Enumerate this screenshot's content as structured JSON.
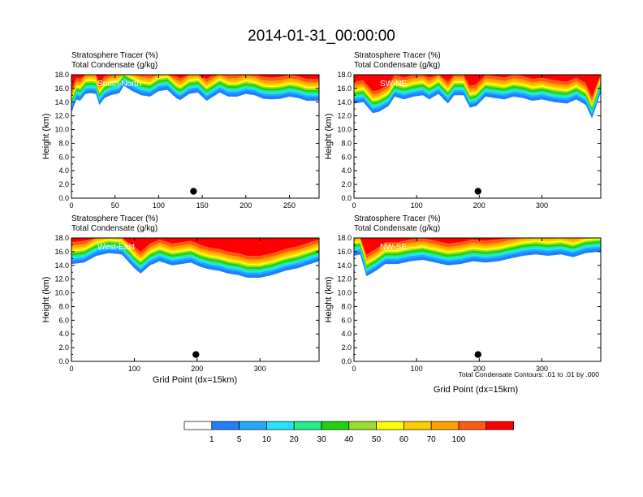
{
  "figure_title": "2014-01-31_00:00:00",
  "panel_title_line1": "Stratosphere Tracer   (%)",
  "panel_title_line2": "Total Condensate   (g/kg)",
  "ylabel": "Height (km)",
  "xlabel": "Grid Point (dx=15km)",
  "contour_note": "Total Condensate Contours: .01 to .01 by .000",
  "colors": [
    "#ffffff",
    "#1f7fff",
    "#22a8ff",
    "#23e3ff",
    "#22ee8a",
    "#20d20c",
    "#9bdf2e",
    "#ffff00",
    "#ffcc00",
    "#ffa200",
    "#ff5a12",
    "#ff0000"
  ],
  "chart_data": [
    {
      "type": "heatmap",
      "label": "South-North",
      "xlim": [
        0,
        284
      ],
      "xticks": [
        "0",
        "50",
        "100",
        "150",
        "200",
        "250"
      ],
      "xtick_values": [
        0,
        50,
        100,
        150,
        200,
        250
      ],
      "ylim": [
        0,
        18
      ],
      "yticks": [
        "0.0",
        "2.0",
        "4.0",
        "6.0",
        "8.0",
        "10.0",
        "12.0",
        "14.0",
        "16.0",
        "18.0"
      ],
      "marker": {
        "x": 140,
        "y": 1.0
      },
      "tracer_bottom_profile": [
        [
          0,
          12.6
        ],
        [
          6,
          14.4
        ],
        [
          10,
          14.2
        ],
        [
          16,
          15.2
        ],
        [
          22,
          15.3
        ],
        [
          28,
          15.2
        ],
        [
          32,
          13.6
        ],
        [
          38,
          14.6
        ],
        [
          45,
          15.0
        ],
        [
          55,
          15.3
        ],
        [
          60,
          16.4
        ],
        [
          70,
          15.6
        ],
        [
          80,
          15.0
        ],
        [
          90,
          14.8
        ],
        [
          100,
          15.6
        ],
        [
          110,
          15.8
        ],
        [
          120,
          14.6
        ],
        [
          125,
          14.3
        ],
        [
          135,
          15.2
        ],
        [
          145,
          15.4
        ],
        [
          155,
          14.2
        ],
        [
          160,
          14.6
        ],
        [
          170,
          15.4
        ],
        [
          180,
          14.8
        ],
        [
          190,
          14.8
        ],
        [
          200,
          15.2
        ],
        [
          210,
          15.0
        ],
        [
          220,
          14.5
        ],
        [
          230,
          14.4
        ],
        [
          240,
          14.5
        ],
        [
          250,
          14.8
        ],
        [
          260,
          14.6
        ],
        [
          270,
          14.2
        ],
        [
          284,
          14.2
        ]
      ]
    },
    {
      "type": "heatmap",
      "label": "SW-NE",
      "xlim": [
        0,
        394
      ],
      "xticks": [
        "0",
        "100",
        "200",
        "300"
      ],
      "xtick_values": [
        0,
        100,
        200,
        300
      ],
      "ylim": [
        0,
        18
      ],
      "yticks": [
        "0.0",
        "2.0",
        "4.0",
        "6.0",
        "8.0",
        "10.0",
        "12.0",
        "14.0",
        "16.0",
        "18.0"
      ],
      "marker": {
        "x": 198,
        "y": 1.0
      },
      "tracer_bottom_profile": [
        [
          0,
          13.8
        ],
        [
          15,
          14.0
        ],
        [
          30,
          12.4
        ],
        [
          40,
          12.6
        ],
        [
          55,
          13.4
        ],
        [
          65,
          14.8
        ],
        [
          80,
          14.4
        ],
        [
          95,
          14.8
        ],
        [
          110,
          15.0
        ],
        [
          120,
          14.4
        ],
        [
          135,
          15.2
        ],
        [
          150,
          13.8
        ],
        [
          160,
          15.0
        ],
        [
          175,
          15.0
        ],
        [
          185,
          13.2
        ],
        [
          195,
          13.4
        ],
        [
          210,
          14.8
        ],
        [
          225,
          14.6
        ],
        [
          240,
          14.4
        ],
        [
          255,
          14.8
        ],
        [
          270,
          14.6
        ],
        [
          285,
          14.2
        ],
        [
          300,
          14.4
        ],
        [
          320,
          14.0
        ],
        [
          340,
          13.8
        ],
        [
          355,
          14.4
        ],
        [
          370,
          13.6
        ],
        [
          380,
          11.6
        ],
        [
          394,
          15.4
        ]
      ]
    },
    {
      "type": "heatmap",
      "label": "West-East",
      "xlim": [
        0,
        394
      ],
      "xticks": [
        "0",
        "100",
        "200",
        "300"
      ],
      "xtick_values": [
        0,
        100,
        200,
        300
      ],
      "ylim": [
        0,
        18
      ],
      "yticks": [
        "0.0",
        "2.0",
        "4.0",
        "6.0",
        "8.0",
        "10.0",
        "12.0",
        "14.0",
        "16.0",
        "18.0"
      ],
      "marker": {
        "x": 198,
        "y": 1.0
      },
      "tracer_bottom_profile": [
        [
          0,
          14.2
        ],
        [
          20,
          14.4
        ],
        [
          40,
          15.4
        ],
        [
          60,
          15.8
        ],
        [
          80,
          15.6
        ],
        [
          100,
          13.6
        ],
        [
          110,
          12.8
        ],
        [
          125,
          14.0
        ],
        [
          140,
          14.6
        ],
        [
          160,
          14.0
        ],
        [
          175,
          14.2
        ],
        [
          190,
          14.4
        ],
        [
          205,
          13.8
        ],
        [
          220,
          13.4
        ],
        [
          235,
          13.2
        ],
        [
          250,
          12.8
        ],
        [
          265,
          12.6
        ],
        [
          280,
          12.2
        ],
        [
          300,
          12.2
        ],
        [
          320,
          12.6
        ],
        [
          340,
          13.2
        ],
        [
          360,
          13.6
        ],
        [
          380,
          14.2
        ],
        [
          394,
          14.6
        ]
      ]
    },
    {
      "type": "heatmap",
      "label": "NW-SE",
      "xlim": [
        0,
        394
      ],
      "xticks": [
        "0",
        "100",
        "200",
        "300"
      ],
      "xtick_values": [
        0,
        100,
        200,
        300
      ],
      "ylim": [
        0,
        18
      ],
      "yticks": [
        "0.0",
        "2.0",
        "4.0",
        "6.0",
        "8.0",
        "10.0",
        "12.0",
        "14.0",
        "16.0",
        "18.0"
      ],
      "marker": {
        "x": 198,
        "y": 1.0
      },
      "tracer_bottom_profile": [
        [
          0,
          15.4
        ],
        [
          10,
          15.6
        ],
        [
          20,
          12.4
        ],
        [
          35,
          13.2
        ],
        [
          50,
          14.2
        ],
        [
          70,
          14.2
        ],
        [
          90,
          14.6
        ],
        [
          110,
          14.8
        ],
        [
          130,
          14.4
        ],
        [
          150,
          14.0
        ],
        [
          170,
          14.2
        ],
        [
          190,
          14.6
        ],
        [
          210,
          14.4
        ],
        [
          230,
          14.6
        ],
        [
          250,
          15.0
        ],
        [
          270,
          15.4
        ],
        [
          290,
          15.6
        ],
        [
          310,
          15.4
        ],
        [
          330,
          15.6
        ],
        [
          350,
          15.2
        ],
        [
          370,
          15.8
        ],
        [
          394,
          16.0
        ]
      ]
    }
  ],
  "colorbar": {
    "labels": [
      "1",
      "5",
      "10",
      "20",
      "30",
      "40",
      "50",
      "60",
      "70",
      "100"
    ]
  }
}
